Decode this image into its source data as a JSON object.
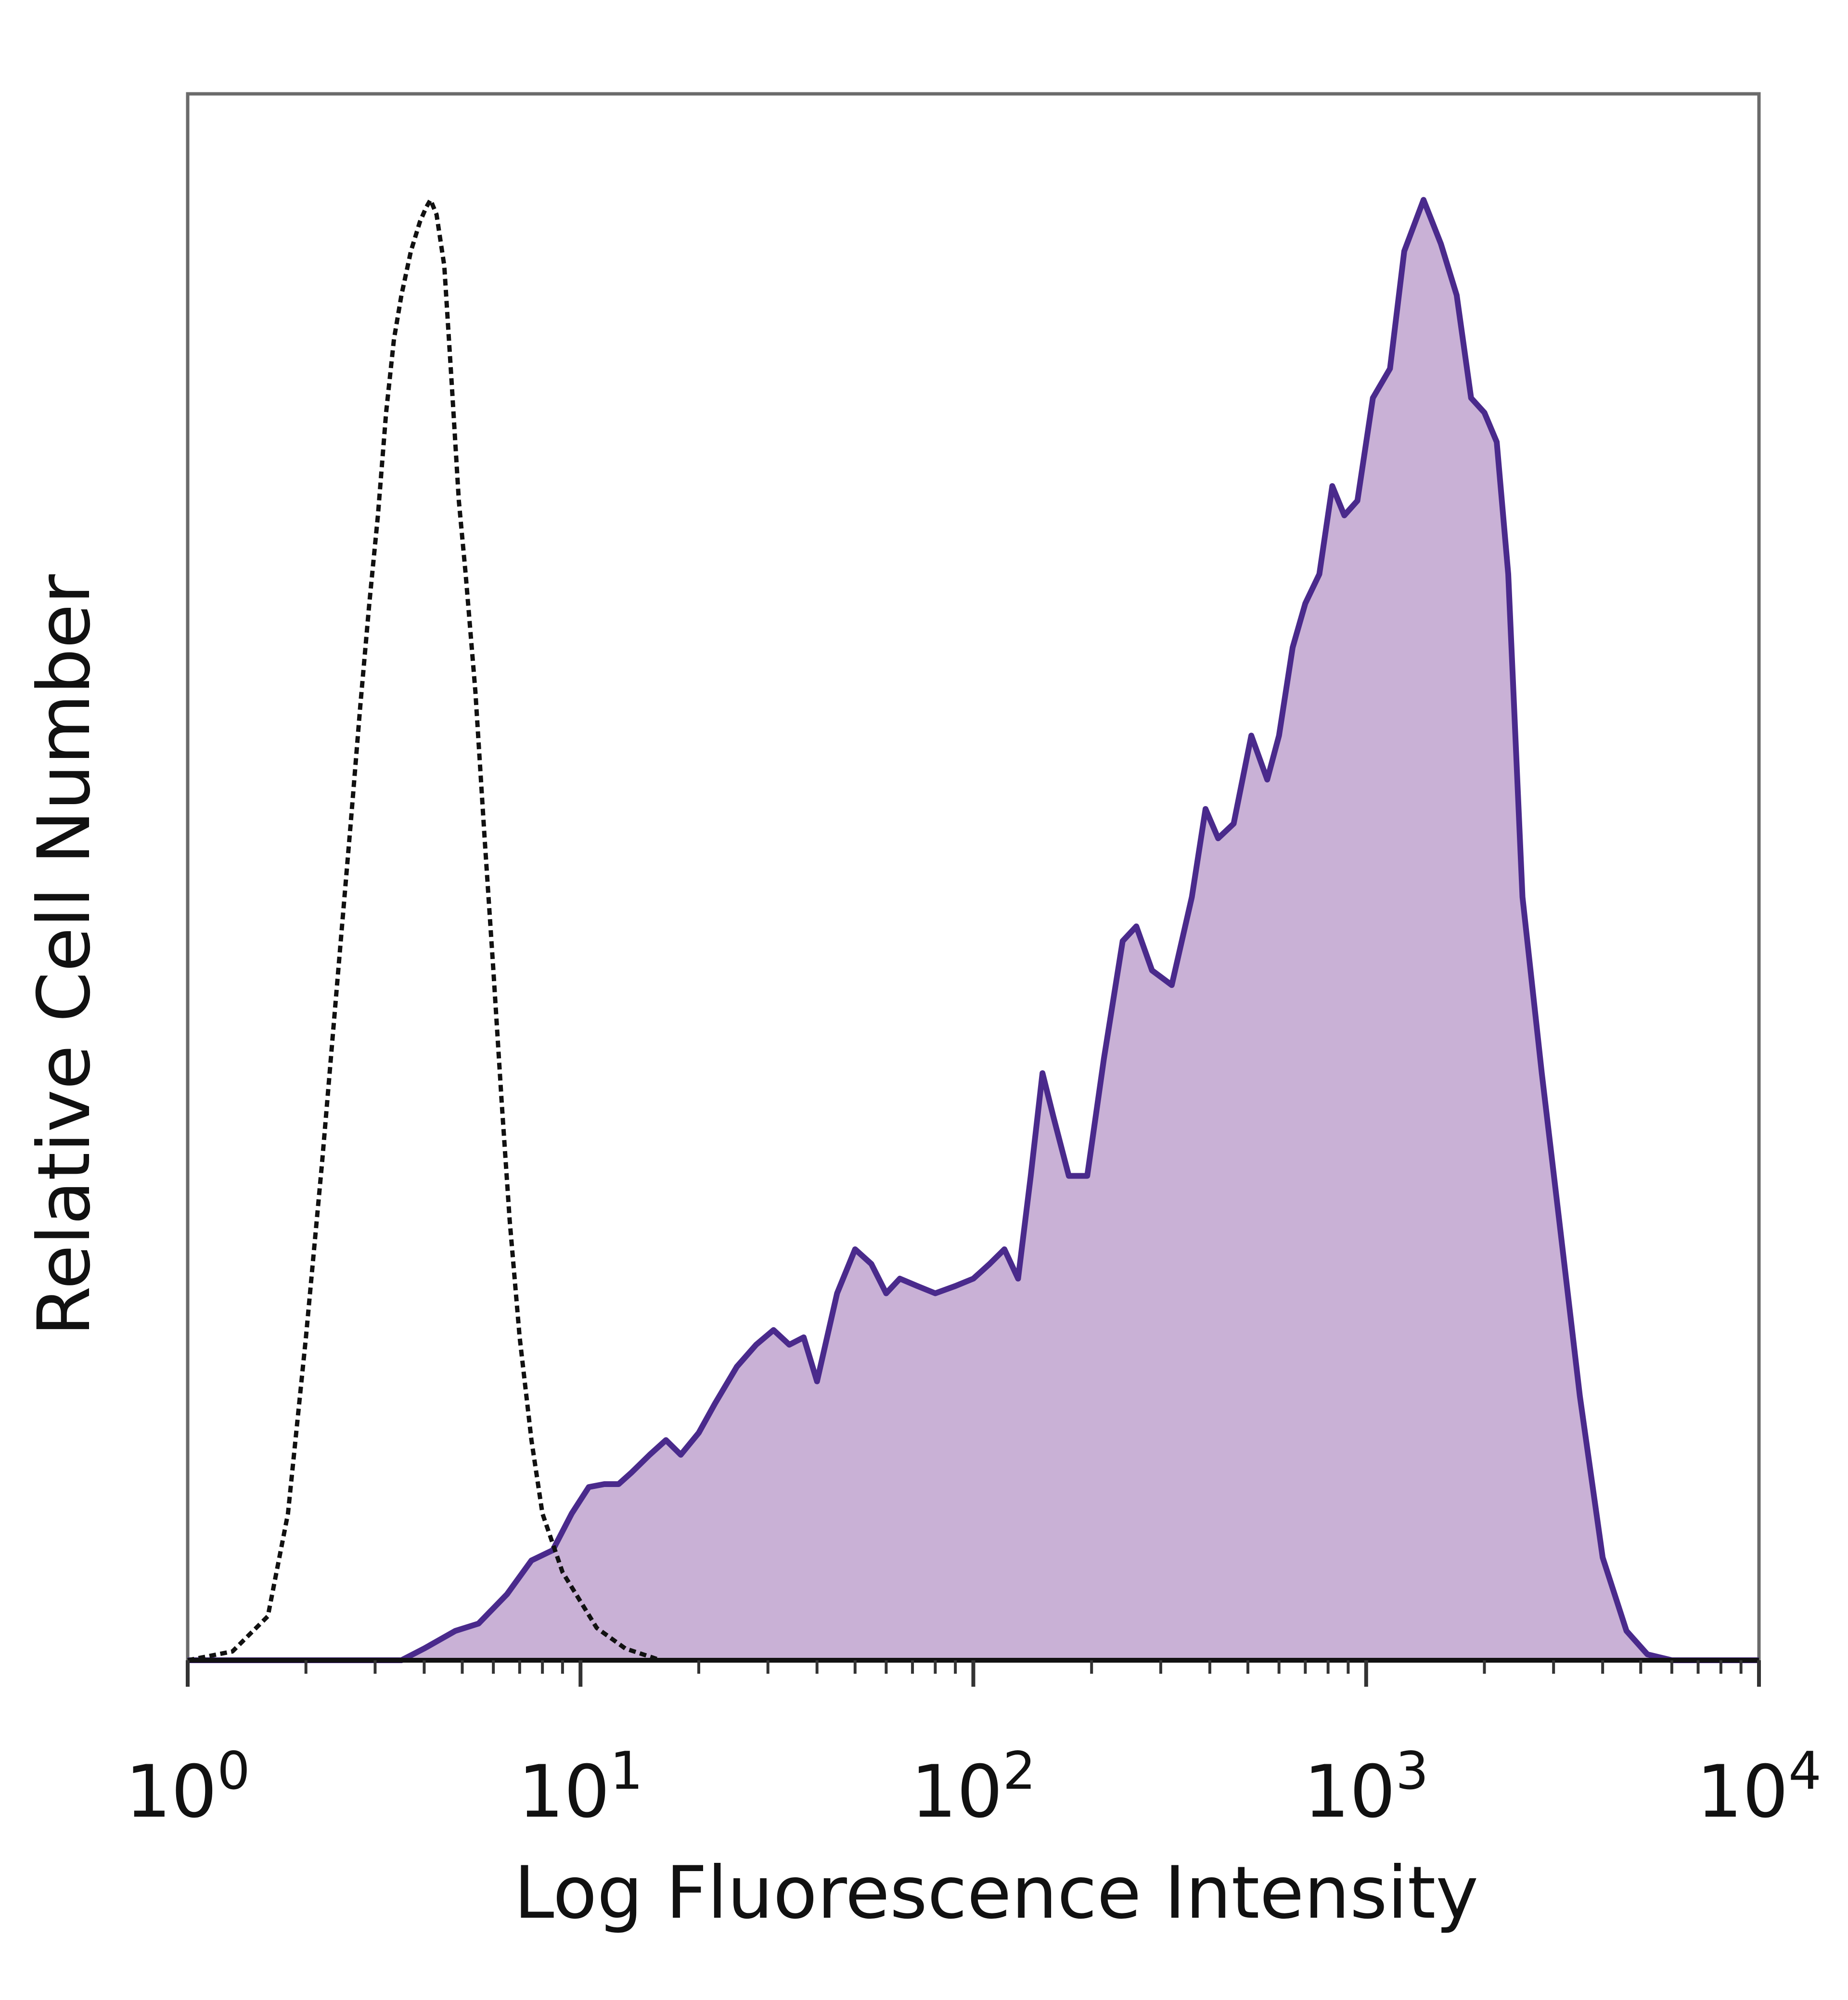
{
  "chart_data": {
    "type": "area",
    "xscale": "log",
    "xlim": [
      1,
      10000
    ],
    "ylim": [
      0,
      1
    ],
    "xlabel": "Log Fluorescence Intensity",
    "ylabel": "Relative Cell Number",
    "xticks": [
      {
        "value": 1,
        "base": "10",
        "exp": "0"
      },
      {
        "value": 10,
        "base": "10",
        "exp": "1"
      },
      {
        "value": 100,
        "base": "10",
        "exp": "2"
      },
      {
        "value": 1000,
        "base": "10",
        "exp": "3"
      },
      {
        "value": 10000,
        "base": "10",
        "exp": "4"
      }
    ],
    "grid": false,
    "legend": "none",
    "series": [
      {
        "style": "dotted",
        "color": "#111111",
        "fill": "none",
        "points": [
          [
            1.0,
            0.0
          ],
          [
            1.3,
            0.006
          ],
          [
            1.6,
            0.03
          ],
          [
            1.8,
            0.1
          ],
          [
            2.0,
            0.22
          ],
          [
            2.2,
            0.34
          ],
          [
            2.4,
            0.46
          ],
          [
            2.6,
            0.57
          ],
          [
            2.75,
            0.65
          ],
          [
            2.9,
            0.72
          ],
          [
            3.05,
            0.78
          ],
          [
            3.2,
            0.85
          ],
          [
            3.35,
            0.9
          ],
          [
            3.5,
            0.93
          ],
          [
            3.7,
            0.96
          ],
          [
            3.9,
            0.98
          ],
          [
            4.05,
            0.99
          ],
          [
            4.15,
            0.995
          ],
          [
            4.3,
            0.985
          ],
          [
            4.5,
            0.95
          ],
          [
            4.7,
            0.87
          ],
          [
            4.9,
            0.79
          ],
          [
            5.1,
            0.74
          ],
          [
            5.4,
            0.66
          ],
          [
            5.7,
            0.56
          ],
          [
            6.0,
            0.47
          ],
          [
            6.3,
            0.38
          ],
          [
            6.6,
            0.3
          ],
          [
            7.0,
            0.22
          ],
          [
            7.5,
            0.15
          ],
          [
            8.0,
            0.1
          ],
          [
            9.0,
            0.06
          ],
          [
            10.0,
            0.04
          ],
          [
            11.0,
            0.022
          ],
          [
            13.0,
            0.008
          ],
          [
            16.0,
            0.0
          ]
        ]
      },
      {
        "style": "solid",
        "color": "#4a2a8c",
        "fill": "#c9b1d6",
        "points": [
          [
            1.0,
            0.0
          ],
          [
            3.5,
            0.0
          ],
          [
            4.0,
            0.008
          ],
          [
            4.8,
            0.02
          ],
          [
            5.5,
            0.025
          ],
          [
            6.5,
            0.045
          ],
          [
            7.5,
            0.068
          ],
          [
            8.5,
            0.075
          ],
          [
            9.5,
            0.1
          ],
          [
            10.5,
            0.118
          ],
          [
            11.5,
            0.12
          ],
          [
            12.5,
            0.12
          ],
          [
            13.5,
            0.128
          ],
          [
            15.0,
            0.14
          ],
          [
            16.5,
            0.15
          ],
          [
            18.0,
            0.14
          ],
          [
            20.0,
            0.155
          ],
          [
            22.0,
            0.175
          ],
          [
            25.0,
            0.2
          ],
          [
            28.0,
            0.215
          ],
          [
            31.0,
            0.225
          ],
          [
            34.0,
            0.215
          ],
          [
            37.0,
            0.22
          ],
          [
            40.0,
            0.19
          ],
          [
            45.0,
            0.25
          ],
          [
            50.0,
            0.28
          ],
          [
            55.0,
            0.27
          ],
          [
            60.0,
            0.25
          ],
          [
            65.0,
            0.26
          ],
          [
            72.0,
            0.255
          ],
          [
            80.0,
            0.25
          ],
          [
            90.0,
            0.255
          ],
          [
            100.0,
            0.26
          ],
          [
            110.0,
            0.27
          ],
          [
            120.0,
            0.28
          ],
          [
            130.0,
            0.26
          ],
          [
            140.0,
            0.33
          ],
          [
            150.0,
            0.4
          ],
          [
            160.0,
            0.37
          ],
          [
            175.0,
            0.33
          ],
          [
            195.0,
            0.33
          ],
          [
            215.0,
            0.41
          ],
          [
            240.0,
            0.49
          ],
          [
            260.0,
            0.5
          ],
          [
            285.0,
            0.47
          ],
          [
            320.0,
            0.46
          ],
          [
            360.0,
            0.52
          ],
          [
            390.0,
            0.58
          ],
          [
            420.0,
            0.56
          ],
          [
            460.0,
            0.57
          ],
          [
            510.0,
            0.63
          ],
          [
            560.0,
            0.6
          ],
          [
            600.0,
            0.63
          ],
          [
            650.0,
            0.69
          ],
          [
            700.0,
            0.72
          ],
          [
            760.0,
            0.74
          ],
          [
            820.0,
            0.8
          ],
          [
            880.0,
            0.78
          ],
          [
            950.0,
            0.79
          ],
          [
            1040.0,
            0.86
          ],
          [
            1150.0,
            0.88
          ],
          [
            1250.0,
            0.96
          ],
          [
            1400.0,
            0.995
          ],
          [
            1550.0,
            0.965
          ],
          [
            1700.0,
            0.93
          ],
          [
            1850.0,
            0.86
          ],
          [
            2000.0,
            0.85
          ],
          [
            2150.0,
            0.83
          ],
          [
            2300.0,
            0.74
          ],
          [
            2500.0,
            0.52
          ],
          [
            2800.0,
            0.4
          ],
          [
            3100.0,
            0.3
          ],
          [
            3500.0,
            0.18
          ],
          [
            4000.0,
            0.07
          ],
          [
            4600.0,
            0.02
          ],
          [
            5200.0,
            0.004
          ],
          [
            6000.0,
            0.0
          ],
          [
            10000.0,
            0.0
          ]
        ]
      }
    ]
  }
}
